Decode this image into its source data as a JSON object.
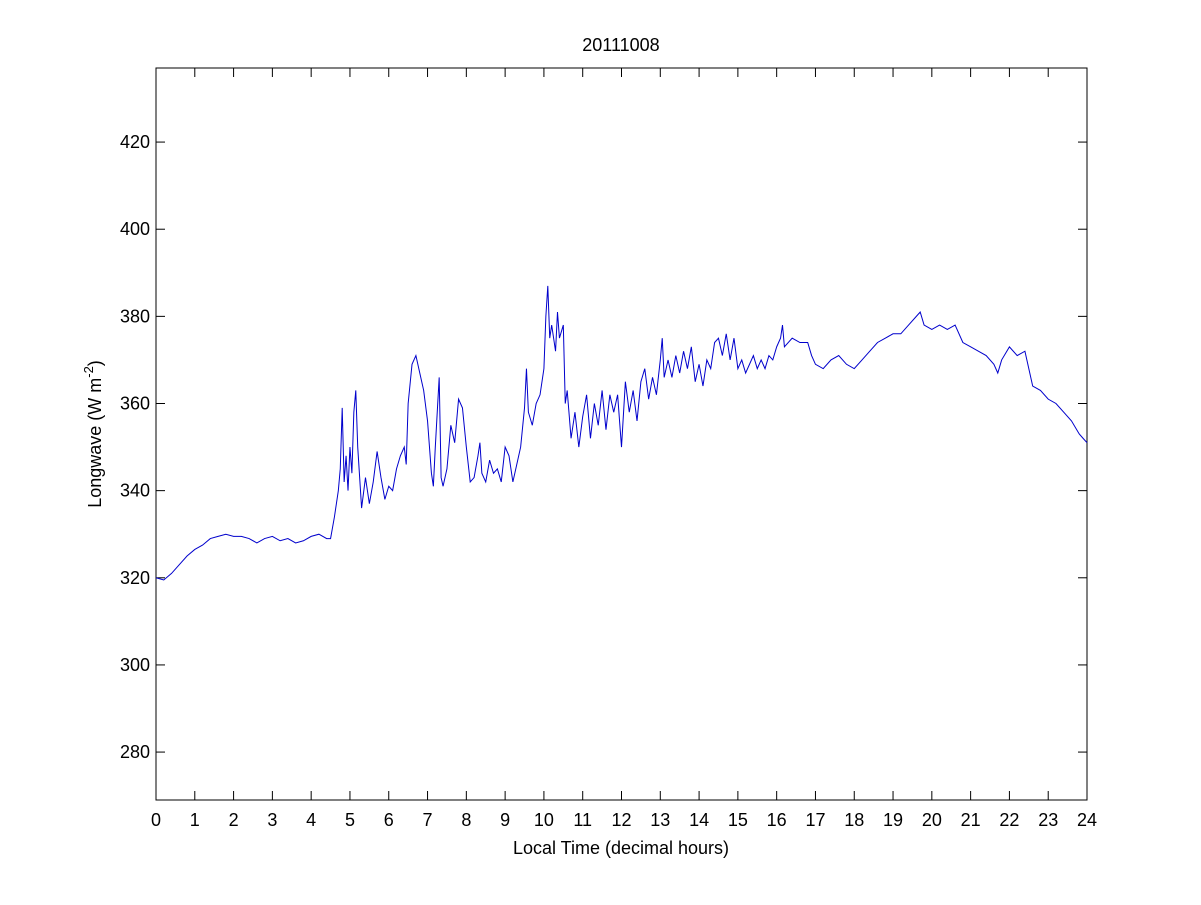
{
  "chart_data": {
    "type": "line",
    "title": "20111008",
    "x_label": "Local Time (decimal hours)",
    "y_label": {
      "text": "Longwave (W m",
      "superscript": "-2",
      "suffix": ")"
    },
    "xlim": [
      0,
      24
    ],
    "xticks": [
      0,
      1,
      2,
      3,
      4,
      5,
      6,
      7,
      8,
      9,
      10,
      11,
      12,
      13,
      14,
      15,
      16,
      17,
      18,
      19,
      20,
      21,
      22,
      23,
      24
    ],
    "ylim": [
      269,
      437
    ],
    "yticks": [
      280,
      300,
      320,
      340,
      360,
      380,
      400,
      420
    ],
    "grid": false,
    "series": [
      {
        "name": "Longwave",
        "color": "#0000cc",
        "x": [
          0,
          0.2,
          0.4,
          0.6,
          0.8,
          1.0,
          1.2,
          1.4,
          1.6,
          1.8,
          2.0,
          2.2,
          2.4,
          2.6,
          2.8,
          3.0,
          3.2,
          3.4,
          3.6,
          3.8,
          4.0,
          4.2,
          4.4,
          4.5,
          4.6,
          4.7,
          4.75,
          4.8,
          4.85,
          4.9,
          4.95,
          5.0,
          5.05,
          5.1,
          5.15,
          5.2,
          5.3,
          5.4,
          5.5,
          5.6,
          5.7,
          5.8,
          5.9,
          6.0,
          6.1,
          6.2,
          6.3,
          6.4,
          6.45,
          6.5,
          6.6,
          6.7,
          6.8,
          6.9,
          7.0,
          7.1,
          7.15,
          7.2,
          7.3,
          7.35,
          7.4,
          7.5,
          7.6,
          7.7,
          7.8,
          7.9,
          8.0,
          8.1,
          8.2,
          8.3,
          8.35,
          8.4,
          8.5,
          8.6,
          8.7,
          8.8,
          8.9,
          9.0,
          9.1,
          9.2,
          9.3,
          9.4,
          9.5,
          9.55,
          9.6,
          9.7,
          9.8,
          9.9,
          10.0,
          10.05,
          10.1,
          10.15,
          10.2,
          10.3,
          10.35,
          10.4,
          10.5,
          10.55,
          10.6,
          10.7,
          10.8,
          10.9,
          11.0,
          11.1,
          11.2,
          11.3,
          11.4,
          11.5,
          11.6,
          11.7,
          11.8,
          11.9,
          12.0,
          12.1,
          12.2,
          12.3,
          12.4,
          12.5,
          12.6,
          12.7,
          12.8,
          12.9,
          13.0,
          13.05,
          13.1,
          13.2,
          13.3,
          13.4,
          13.5,
          13.6,
          13.7,
          13.8,
          13.9,
          14.0,
          14.1,
          14.2,
          14.3,
          14.4,
          14.5,
          14.6,
          14.7,
          14.8,
          14.9,
          15.0,
          15.1,
          15.2,
          15.4,
          15.5,
          15.6,
          15.7,
          15.8,
          15.9,
          16.0,
          16.1,
          16.15,
          16.2,
          16.4,
          16.6,
          16.8,
          16.9,
          17.0,
          17.2,
          17.4,
          17.6,
          17.8,
          18.0,
          18.2,
          18.4,
          18.6,
          18.8,
          19.0,
          19.2,
          19.4,
          19.6,
          19.7,
          19.8,
          20.0,
          20.2,
          20.4,
          20.6,
          20.8,
          21.0,
          21.2,
          21.4,
          21.6,
          21.7,
          21.8,
          22.0,
          22.2,
          22.4,
          22.6,
          22.8,
          23.0,
          23.2,
          23.4,
          23.6,
          23.8,
          23.9,
          24.0
        ],
        "values": [
          320,
          319.5,
          321,
          323,
          325,
          326.5,
          327.5,
          329,
          329.5,
          330,
          329.5,
          329.5,
          329,
          328,
          329,
          329.5,
          328.5,
          329,
          328,
          328.5,
          329.5,
          330,
          329,
          329,
          334,
          340,
          345,
          359,
          342,
          348,
          340,
          350,
          344,
          358,
          363,
          350,
          336,
          343,
          337,
          342,
          349,
          343,
          338,
          341,
          340,
          345,
          348,
          350,
          346,
          360,
          369,
          371,
          367,
          363,
          356,
          344,
          341,
          350,
          366,
          343,
          341,
          345,
          355,
          351,
          361,
          359,
          350,
          342,
          343,
          348,
          351,
          344,
          342,
          347,
          344,
          345,
          342,
          350,
          348,
          342,
          346,
          350,
          359,
          368,
          358,
          355,
          360,
          362,
          368,
          380,
          387,
          375,
          378,
          372,
          381,
          375,
          378,
          360,
          363,
          352,
          358,
          350,
          357,
          362,
          352,
          360,
          355,
          363,
          354,
          362,
          358,
          362,
          350,
          365,
          358,
          363,
          356,
          365,
          368,
          361,
          366,
          362,
          370,
          375,
          366,
          370,
          366,
          371,
          367,
          372,
          368,
          373,
          365,
          369,
          364,
          370,
          368,
          374,
          375,
          371,
          376,
          370,
          375,
          368,
          370,
          367,
          371,
          368,
          370,
          368,
          371,
          370,
          373,
          375,
          378,
          373,
          375,
          374,
          374,
          371,
          369,
          368,
          370,
          371,
          369,
          368,
          370,
          372,
          374,
          375,
          376,
          376,
          378,
          380,
          381,
          378,
          377,
          378,
          377,
          378,
          374,
          373,
          372,
          371,
          369,
          367,
          370,
          373,
          371,
          372,
          364,
          363,
          361,
          360,
          358,
          356,
          353,
          352,
          351
        ]
      }
    ]
  }
}
